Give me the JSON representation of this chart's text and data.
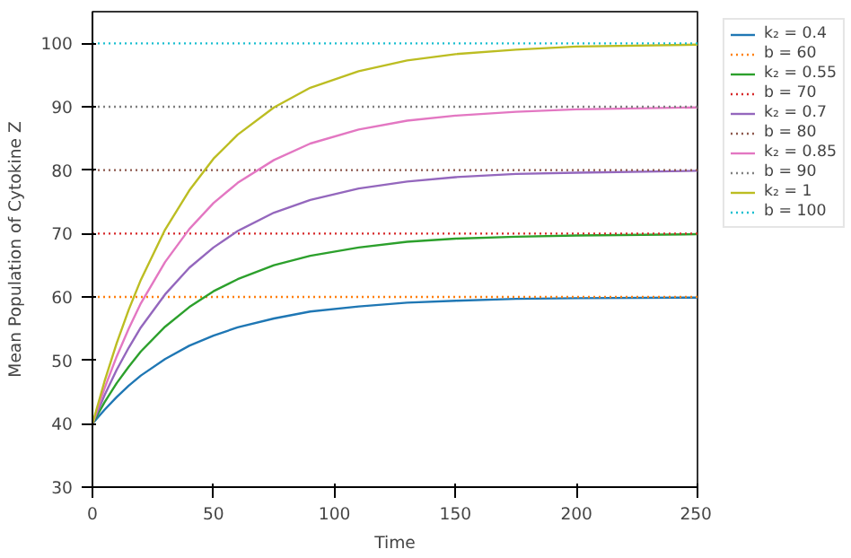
{
  "chart_data": {
    "type": "line",
    "xlabel": "Time",
    "ylabel": "Mean Population of Cytokine Z",
    "x": [
      0,
      5,
      10,
      15,
      20,
      30,
      40,
      50,
      60,
      75,
      90,
      110,
      130,
      150,
      175,
      200,
      250
    ],
    "xlim": [
      0,
      250
    ],
    "xticks": [
      0,
      50,
      100,
      150,
      200,
      250
    ],
    "ylim": [
      30,
      105
    ],
    "yticks": [
      30,
      40,
      50,
      60,
      70,
      80,
      90,
      100
    ],
    "grid": false,
    "legend": "top right",
    "series": [
      {
        "name": "k₂ = 0.4",
        "color": "#1f77b4",
        "line_style": "solid",
        "values": [
          40,
          42.2,
          44.2,
          46,
          47.6,
          50.2,
          52.3,
          53.9,
          55.2,
          56.6,
          57.7,
          58.5,
          59.1,
          59.4,
          59.7,
          59.8,
          59.9
        ]
      },
      {
        "name": "b = 60",
        "color": "#ff7f0e",
        "line_style": "dotted",
        "values": [
          60,
          60,
          60,
          60,
          60,
          60,
          60,
          60,
          60,
          60,
          60,
          60,
          60,
          60,
          60,
          60,
          60
        ]
      },
      {
        "name": "k₂ = 0.55",
        "color": "#2ca02c",
        "line_style": "solid",
        "values": [
          40,
          43.4,
          46.4,
          49,
          51.4,
          55.3,
          58.4,
          60.9,
          62.8,
          65,
          66.5,
          67.8,
          68.7,
          69.2,
          69.5,
          69.7,
          69.9
        ]
      },
      {
        "name": "b = 70",
        "color": "#d62728",
        "line_style": "dotted",
        "values": [
          70,
          70,
          70,
          70,
          70,
          70,
          70,
          70,
          70,
          70,
          70,
          70,
          70,
          70,
          70,
          70,
          70
        ]
      },
      {
        "name": "k₂ = 0.7",
        "color": "#9467bd",
        "line_style": "solid",
        "values": [
          40,
          44.5,
          48.5,
          52,
          55.2,
          60.4,
          64.6,
          67.8,
          70.4,
          73.3,
          75.3,
          77.1,
          78.2,
          78.9,
          79.4,
          79.6,
          79.9
        ]
      },
      {
        "name": "b = 80",
        "color": "#8c564b",
        "line_style": "dotted",
        "values": [
          80,
          80,
          80,
          80,
          80,
          80,
          80,
          80,
          80,
          80,
          80,
          80,
          80,
          80,
          80,
          80,
          80
        ]
      },
      {
        "name": "k₂ = 0.85",
        "color": "#e377c2",
        "line_style": "solid",
        "values": [
          40,
          45.6,
          50.6,
          55,
          59,
          65.5,
          70.7,
          74.8,
          78,
          81.6,
          84.2,
          86.4,
          87.8,
          88.6,
          89.2,
          89.6,
          89.9
        ]
      },
      {
        "name": "b = 90",
        "color": "#7f7f7f",
        "line_style": "dotted",
        "values": [
          90,
          90,
          90,
          90,
          90,
          90,
          90,
          90,
          90,
          90,
          90,
          90,
          90,
          90,
          90,
          90,
          90
        ]
      },
      {
        "name": "k₂ = 1",
        "color": "#bcbd22",
        "line_style": "solid",
        "values": [
          40,
          46.7,
          52.7,
          58,
          62.7,
          70.6,
          76.8,
          81.8,
          85.6,
          89.9,
          93,
          95.6,
          97.3,
          98.3,
          99,
          99.5,
          99.8
        ]
      },
      {
        "name": "b = 100",
        "color": "#17becf",
        "line_style": "dotted",
        "values": [
          100,
          100,
          100,
          100,
          100,
          100,
          100,
          100,
          100,
          100,
          100,
          100,
          100,
          100,
          100,
          100,
          100
        ]
      }
    ]
  }
}
